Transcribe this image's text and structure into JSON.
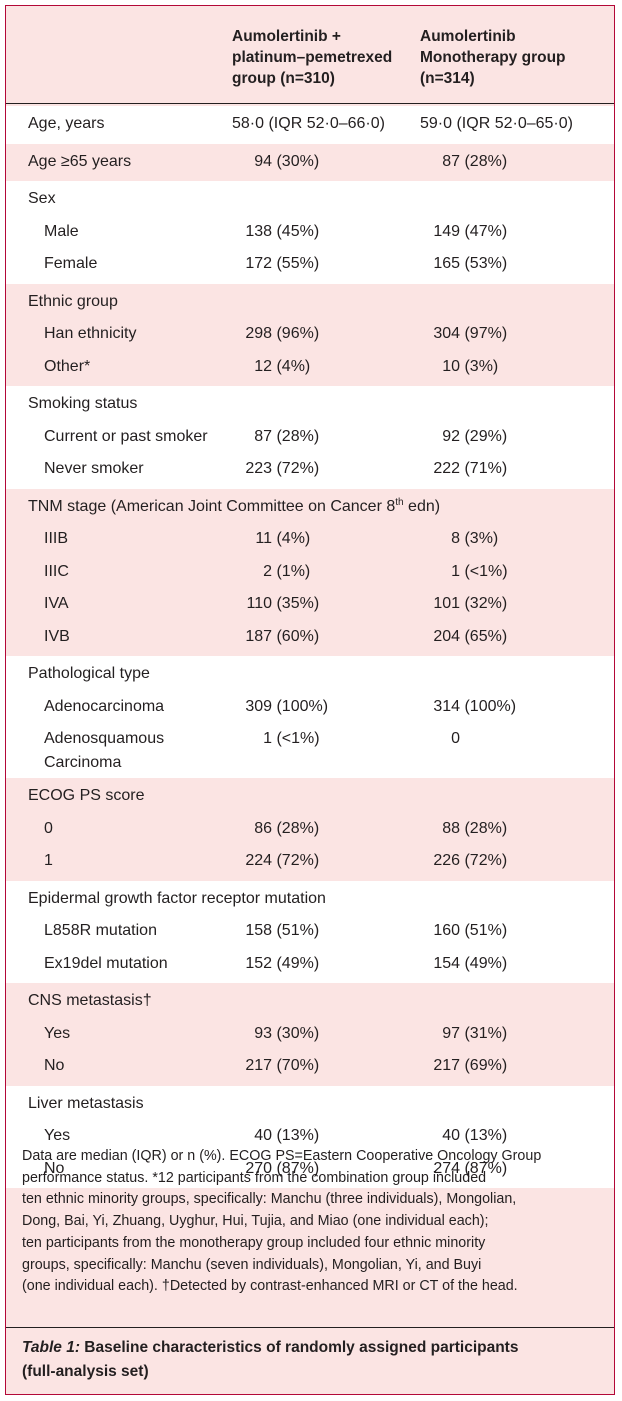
{
  "header": {
    "col1": [
      "Aumolertinib +",
      "platinum–pemetrexed",
      "group (n=310)"
    ],
    "col2": [
      "Aumolertinib",
      "Monotherapy group",
      "(n=314)"
    ]
  },
  "groups": [
    {
      "bg": "white",
      "rows": [
        {
          "label": "Age, years",
          "v1": "58·0 (IQR 52·0–66·0)",
          "v2": "59·0 (IQR 52·0–65·0)"
        }
      ]
    },
    {
      "bg": "pink",
      "rows": [
        {
          "label": "Age ≥65 years",
          "v1": "94 (30%)",
          "v2": "87 (28%)"
        }
      ]
    },
    {
      "bg": "white",
      "rows": [
        {
          "label": "Sex",
          "v1": "",
          "v2": ""
        },
        {
          "label": "Male",
          "sub": true,
          "v1": "138 (45%)",
          "v2": "149 (47%)"
        },
        {
          "label": "Female",
          "sub": true,
          "v1": "172 (55%)",
          "v2": "165 (53%)"
        }
      ]
    },
    {
      "bg": "pink",
      "rows": [
        {
          "label": "Ethnic group",
          "v1": "",
          "v2": ""
        },
        {
          "label": "Han ethnicity",
          "sub": true,
          "v1": "298 (96%)",
          "v2": "304 (97%)"
        },
        {
          "label": "Other*",
          "sub": true,
          "v1": "12 (4%)",
          "v2": "10 (3%)"
        }
      ]
    },
    {
      "bg": "white",
      "rows": [
        {
          "label": "Smoking status",
          "v1": "",
          "v2": ""
        },
        {
          "label": "Current or past smoker",
          "sub": true,
          "v1": "87 (28%)",
          "v2": "92 (29%)"
        },
        {
          "label": "Never smoker",
          "sub": true,
          "v1": "223 (72%)",
          "v2": "222 (71%)"
        }
      ]
    },
    {
      "bg": "pink",
      "rows": [
        {
          "label": "TNM stage (American Joint Committee on Cancer 8",
          "sup": "th",
          "suffix": " edn)",
          "v1": "",
          "v2": ""
        },
        {
          "label": "IIIB",
          "sub": true,
          "v1": "11 (4%)",
          "v2": "8 (3%)"
        },
        {
          "label": "IIIC",
          "sub": true,
          "v1": "2 (1%)",
          "v2": "1 (<1%)"
        },
        {
          "label": "IVA",
          "sub": true,
          "v1": "110 (35%)",
          "v2": "101 (32%)"
        },
        {
          "label": "IVB",
          "sub": true,
          "v1": "187 (60%)",
          "v2": "204 (65%)"
        }
      ]
    },
    {
      "bg": "white",
      "rows": [
        {
          "label": "Pathological type",
          "v1": "",
          "v2": ""
        },
        {
          "label": "Adenocarcinoma",
          "sub": true,
          "v1": "309 (100%)",
          "v2": "314 (100%)"
        },
        {
          "label": "Adenosquamous Carcinoma",
          "sub": true,
          "tall": true,
          "v1": "1 (<1%)",
          "v2": "0"
        }
      ]
    },
    {
      "bg": "pink",
      "rows": [
        {
          "label": "ECOG PS score",
          "v1": "",
          "v2": ""
        },
        {
          "label": "0",
          "sub": true,
          "v1": "86 (28%)",
          "v2": "88 (28%)"
        },
        {
          "label": "1",
          "sub": true,
          "v1": "224 (72%)",
          "v2": "226 (72%)"
        }
      ]
    },
    {
      "bg": "white",
      "rows": [
        {
          "label": "Epidermal growth factor receptor mutation",
          "v1": "",
          "v2": ""
        },
        {
          "label": "L858R mutation",
          "sub": true,
          "v1": "158 (51%)",
          "v2": "160 (51%)"
        },
        {
          "label": "Ex19del mutation",
          "sub": true,
          "v1": "152 (49%)",
          "v2": "154 (49%)"
        }
      ]
    },
    {
      "bg": "pink",
      "rows": [
        {
          "label": "CNS metastasis†",
          "v1": "",
          "v2": ""
        },
        {
          "label": "Yes",
          "sub": true,
          "v1": "93 (30%)",
          "v2": "97 (31%)"
        },
        {
          "label": "No",
          "sub": true,
          "v1": "217 (70%)",
          "v2": "217 (69%)"
        }
      ]
    },
    {
      "bg": "white",
      "rows": [
        {
          "label": "Liver metastasis",
          "v1": "",
          "v2": ""
        },
        {
          "label": "Yes",
          "sub": true,
          "v1": "40 (13%)",
          "v2": "40 (13%)"
        },
        {
          "label": "No",
          "sub": true,
          "v1": "270 (87%)",
          "v2": "274 (87%)"
        }
      ]
    }
  ],
  "notes": [
    "Data are median (IQR) or n (%). ECOG PS=Eastern Cooperative Oncology Group",
    "performance status. *12 participants from the combination group included",
    "ten ethnic minority groups, specifically: Manchu (three individuals), Mongolian,",
    "Dong, Bai, Yi, Zhuang, Uyghur, Hui, Tujia, and Miao (one individual each);",
    "ten participants from the monotherapy group included four ethnic minority",
    "groups, specifically: Manchu (seven individuals), Mongolian, Yi, and Buyi",
    "(one individual each). †Detected by contrast-enhanced MRI or CT of the head."
  ],
  "caption": {
    "label": "Table 1:",
    "text": " Baseline characteristics of randomly assigned participants",
    "line2": "(full-analysis set)"
  },
  "colors": {
    "border": "#b30838",
    "pink": "#fbe4e3",
    "white": "#ffffff",
    "text": "#231f20"
  }
}
